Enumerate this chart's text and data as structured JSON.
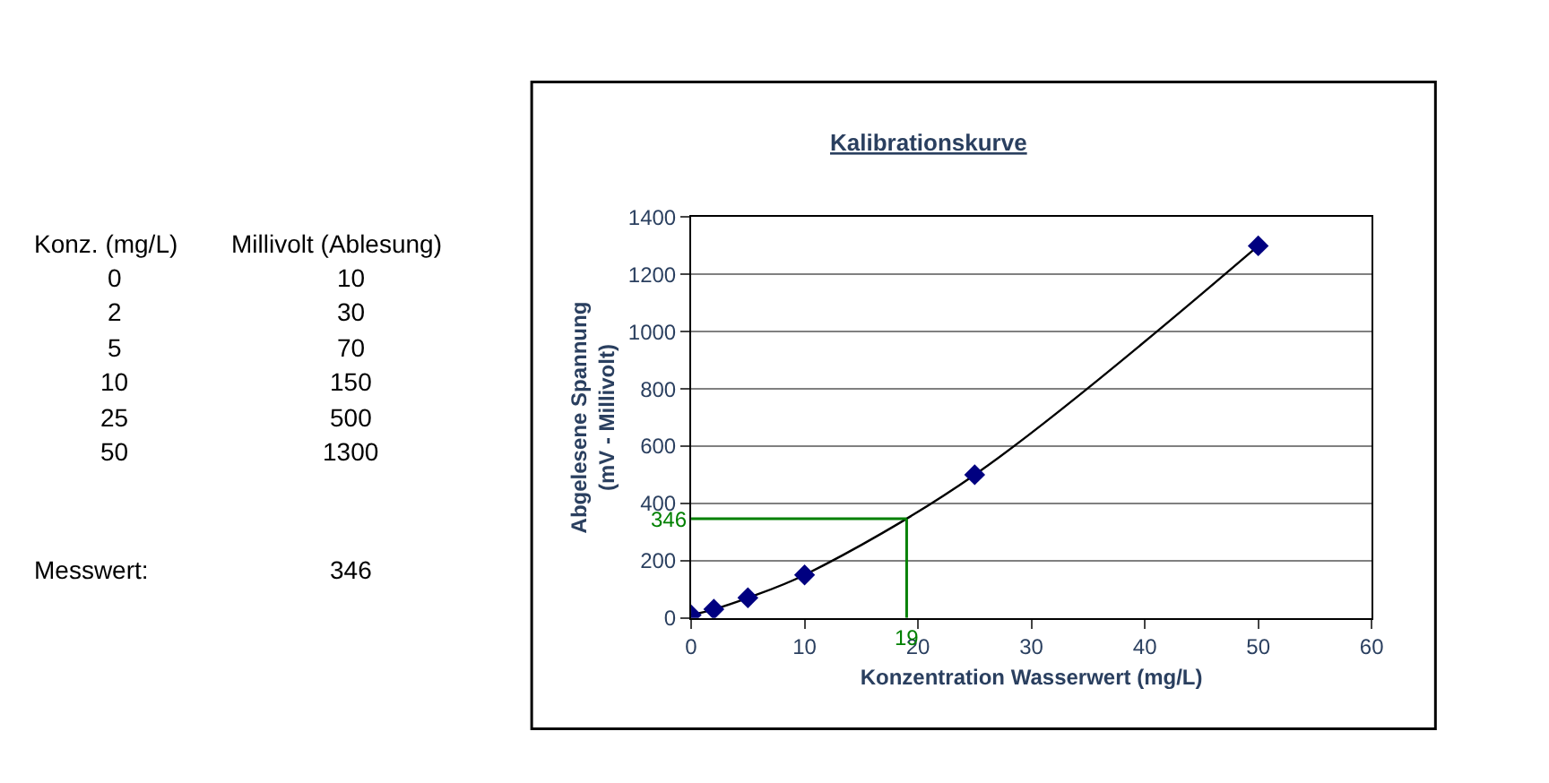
{
  "chart_data": [
    {
      "type": "other",
      "annotations": [
        "Konz. (mg/L)",
        "Millivolt (Ablesung)",
        "0",
        "10",
        "2",
        "30",
        "5",
        "70",
        "10",
        "150",
        "25",
        "500",
        "50",
        "1300",
        "Messwert:",
        "346"
      ]
    },
    {
      "type": "scatter",
      "title": "Kalibrationskurve",
      "xlabel": "Konzentration Wasserwert (mg/L)",
      "ylabel": "Abgelesene Spannung\n(mV - Millivolt)",
      "x": [
        0,
        2,
        5,
        10,
        25,
        50
      ],
      "series": [
        {
          "type": "line",
          "color": "#000000",
          "values": [
            10,
            30,
            70,
            150,
            500,
            1300
          ],
          "marker": "none"
        },
        {
          "color": "#000080",
          "values": [
            10,
            30,
            70,
            150,
            500,
            1300
          ],
          "marker": "diamond"
        }
      ],
      "xlim": [
        0,
        60
      ],
      "xticks": [
        0,
        10,
        20,
        30,
        40,
        50,
        60
      ],
      "ylim": [
        0,
        1400
      ],
      "yticks": [
        0,
        200,
        400,
        600,
        800,
        1000,
        1200,
        1400
      ],
      "grid": "y",
      "ref_lines": [
        {
          "axis": "y",
          "value": 346,
          "label": "346",
          "color": "#008000"
        },
        {
          "axis": "x",
          "value": 19,
          "label": "19",
          "color": "#008000"
        }
      ]
    }
  ]
}
